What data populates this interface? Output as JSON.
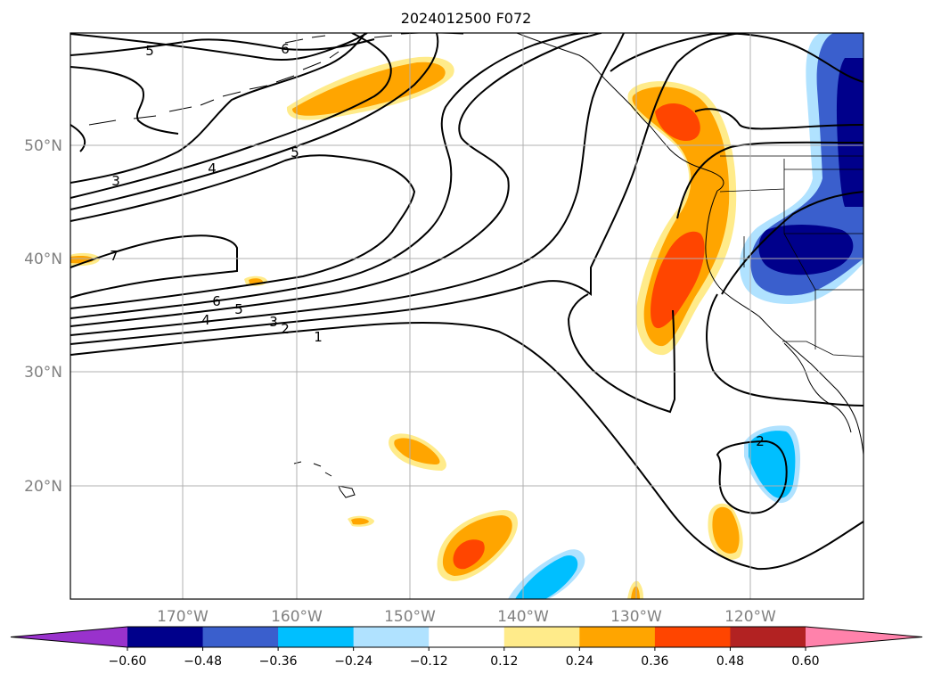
{
  "title": "2024012500 F072",
  "map": {
    "lat_labels": [
      "50°N",
      "40°N",
      "30°N",
      "20°N"
    ],
    "lon_labels": [
      "170°W",
      "160°W",
      "150°W",
      "140°W",
      "130°W",
      "120°W"
    ],
    "grid": true,
    "coastlines": true,
    "state_borders": true
  },
  "contour_labels": [
    "5",
    "6",
    "3",
    "4",
    "5",
    "7",
    "6",
    "5",
    "4",
    "3",
    "2",
    "1",
    "2"
  ],
  "colorbar": {
    "ticks": [
      "−0.60",
      "−0.48",
      "−0.36",
      "−0.24",
      "−0.12",
      "0.12",
      "0.24",
      "0.36",
      "0.48",
      "0.60"
    ],
    "colors": [
      "#9932cc",
      "#00008b",
      "#3a5fcd",
      "#00bfff",
      "#b0e2ff",
      "#ffffff",
      "#ffeb8a",
      "#ffa500",
      "#ff4500",
      "#b22222",
      "#ff82ab"
    ],
    "extend": "both"
  },
  "colors": {
    "contour": "#000000",
    "grid": "#b0b0b0",
    "tick_label": "#808080"
  }
}
